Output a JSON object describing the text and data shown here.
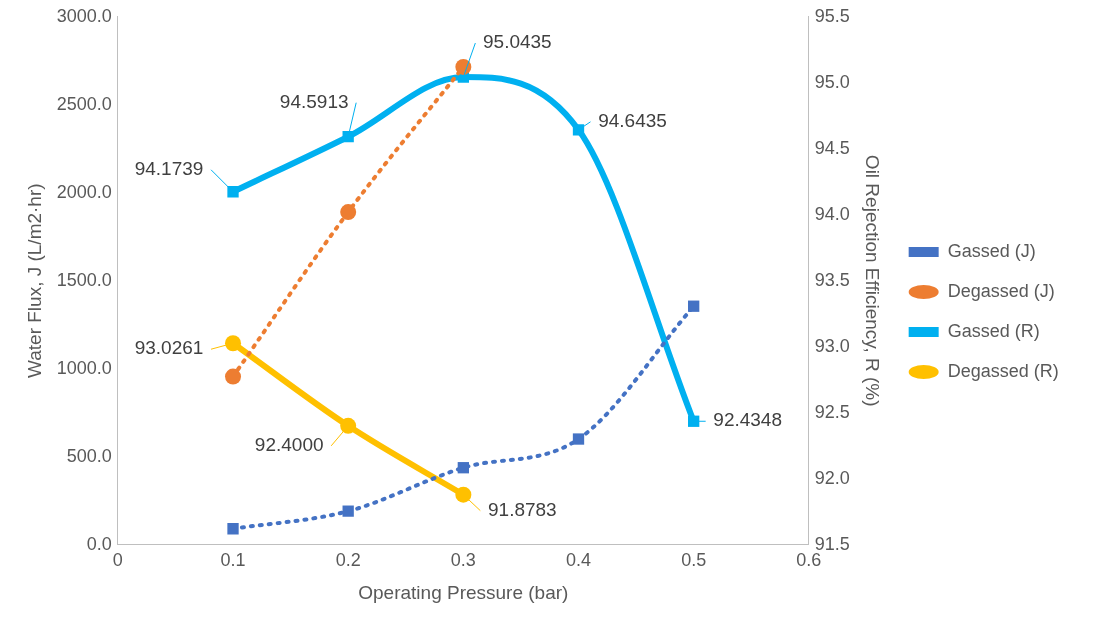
{
  "chart_data": {
    "type": "line",
    "xlabel": "Operating Pressure (bar)",
    "ylabel": "Water Flux, J (L/m2·hr)",
    "y2label": "Oil Rejection Efficiency, R (%)",
    "xlim": [
      0,
      0.6
    ],
    "xticks": [
      0,
      0.1,
      0.2,
      0.3,
      0.4,
      0.5,
      0.6
    ],
    "ylim": [
      0,
      3000
    ],
    "yticks": [
      {
        "value": 0,
        "label": "0.0"
      },
      {
        "value": 500,
        "label": "500.0"
      },
      {
        "value": 1000,
        "label": "1000.0"
      },
      {
        "value": 1500,
        "label": "1500.0"
      },
      {
        "value": 2000,
        "label": "2000.0"
      },
      {
        "value": 2500,
        "label": "2500.0"
      },
      {
        "value": 3000,
        "label": "3000.0"
      }
    ],
    "y2lim": [
      91.5,
      95.5
    ],
    "y2ticks": [
      91.5,
      {
        "value": 92,
        "label": "92.0"
      },
      92.5,
      {
        "value": 93,
        "label": "93.0"
      },
      93.5,
      {
        "value": 94,
        "label": "94.0"
      },
      94.5,
      {
        "value": 95,
        "label": "95.0"
      },
      95.5
    ],
    "grid": false,
    "legend": "right",
    "series": [
      {
        "name": "Gassed (J)",
        "color": "#4472c4",
        "x": [
          0.1,
          0.2,
          0.3,
          0.4,
          0.5
        ],
        "values": [
          90,
          190,
          437,
          600,
          1355
        ],
        "marker": "square",
        "line_style": "dotted"
      },
      {
        "name": "Degassed (J)",
        "color": "#ed7d31",
        "x": [
          0.1,
          0.2,
          0.3
        ],
        "values": [
          955,
          1890,
          2715
        ],
        "marker": "circle",
        "line_style": "dotted"
      },
      {
        "name": "Gassed (R)",
        "color": "#00b0f0",
        "x": [
          0.1,
          0.2,
          0.3,
          0.4,
          0.5
        ],
        "values": [
          94.1739,
          94.5913,
          95.0435,
          94.6435,
          92.4348
        ],
        "axis": "y2",
        "marker": "square",
        "line_style": "solid",
        "value_labels": [
          "94.1739",
          "94.5913",
          "95.0435",
          "94.6435",
          "92.4348"
        ]
      },
      {
        "name": "Degassed (R)",
        "color": "#ffc000",
        "x": [
          0.1,
          0.2,
          0.3
        ],
        "values": [
          93.0261,
          92.4,
          91.8783
        ],
        "axis": "y2",
        "marker": "circle",
        "line_style": "solid",
        "value_labels": [
          "93.0261",
          "92.4000",
          "91.8783"
        ]
      }
    ]
  }
}
